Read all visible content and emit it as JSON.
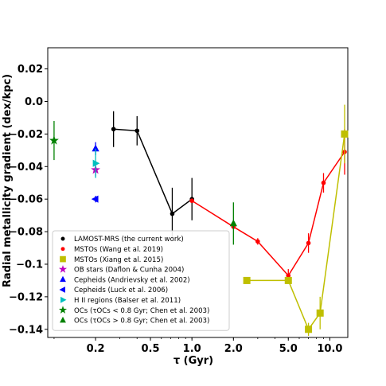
{
  "chart_data": {
    "type": "scatter",
    "title": "",
    "xlabel": "τ (Gyr)",
    "ylabel": "Radial metallicity gradient (dex/kpc)",
    "xscale": "log",
    "xlim": [
      0.09,
      13.5
    ],
    "ylim": [
      -0.145,
      0.033
    ],
    "x_ticks": [
      0.2,
      0.5,
      1.0,
      2.0,
      5.0,
      10.0
    ],
    "x_tick_labels": [
      "0.2",
      "0.5",
      "1.0",
      "2.0",
      "5.0",
      "10.0"
    ],
    "y_ticks": [
      0.02,
      0.0,
      -0.02,
      -0.04,
      -0.06,
      -0.08,
      -0.1,
      -0.12,
      -0.14
    ],
    "y_tick_labels": [
      "0.02",
      "0.0",
      "−0.02",
      "−0.04",
      "−0.06",
      "−0.08",
      "−0.1",
      "−0.12",
      "−0.14"
    ],
    "grid": false,
    "legend_position": "lower-left",
    "series": [
      {
        "name": "LAMOST-MRS (the current work)",
        "color": "#000000",
        "marker": "circle",
        "connected": true,
        "points": [
          {
            "x": 0.27,
            "y": -0.017,
            "err": 0.011
          },
          {
            "x": 0.4,
            "y": -0.018,
            "err": 0.009
          },
          {
            "x": 0.72,
            "y": -0.069,
            "err": 0.016
          },
          {
            "x": 1.0,
            "y": -0.06,
            "err": 0.013
          }
        ]
      },
      {
        "name": "MSTOs (Wang et al. 2019)",
        "color": "#ff0000",
        "marker": "circle",
        "connected": true,
        "points": [
          {
            "x": 1.0,
            "y": -0.061,
            "err": 0.0
          },
          {
            "x": 2.0,
            "y": -0.077,
            "err": 0.0
          },
          {
            "x": 3.0,
            "y": -0.086,
            "err": 0.002
          },
          {
            "x": 5.0,
            "y": -0.107,
            "err": 0.004
          },
          {
            "x": 7.0,
            "y": -0.087,
            "err": 0.006
          },
          {
            "x": 9.0,
            "y": -0.05,
            "err": 0.006
          },
          {
            "x": 12.8,
            "y": -0.031,
            "err": 0.014
          }
        ]
      },
      {
        "name": "MSTOs (Xiang et al. 2015)",
        "color": "#bfbf00",
        "marker": "square",
        "connected": true,
        "points": [
          {
            "x": 2.5,
            "y": -0.11,
            "err": 0.0
          },
          {
            "x": 5.0,
            "y": -0.11,
            "err": 0.0
          },
          {
            "x": 7.0,
            "y": -0.14,
            "err": 0.004
          },
          {
            "x": 8.5,
            "y": -0.13,
            "err": 0.01
          },
          {
            "x": 12.8,
            "y": -0.02,
            "err": 0.018
          }
        ]
      },
      {
        "name": "OB stars (Daflon & Cunha 2004)",
        "color": "#bf00bf",
        "marker": "star",
        "connected": false,
        "points": [
          {
            "x": 0.2,
            "y": -0.042,
            "err": 0.004
          }
        ]
      },
      {
        "name": "Cepheids (Andrievsky et al. 2002)",
        "color": "#0000ff",
        "marker": "triangle-up",
        "connected": false,
        "points": [
          {
            "x": 0.2,
            "y": -0.029,
            "err": 0.004
          }
        ]
      },
      {
        "name": "Cepheids (Luck et al. 2006)",
        "color": "#0000ff",
        "marker": "triangle-left",
        "connected": false,
        "points": [
          {
            "x": 0.2,
            "y": -0.06,
            "err": 0.002
          }
        ]
      },
      {
        "name": "H II regions (Balser et al. 2011)",
        "color": "#00bfbf",
        "marker": "triangle-right",
        "connected": false,
        "points": [
          {
            "x": 0.2,
            "y": -0.038,
            "err": 0.009
          }
        ]
      },
      {
        "name": "OCs (τOCs < 0.8 Gyr; Chen et al. 2003)",
        "color": "#008000",
        "marker": "star",
        "connected": false,
        "points": [
          {
            "x": 0.1,
            "y": -0.024,
            "err": 0.012
          }
        ]
      },
      {
        "name": "OCs (τOCs > 0.8 Gyr; Chen et al. 2003)",
        "color": "#008000",
        "marker": "triangle-up",
        "connected": false,
        "points": [
          {
            "x": 2.0,
            "y": -0.075,
            "err": 0.013
          }
        ]
      }
    ]
  }
}
